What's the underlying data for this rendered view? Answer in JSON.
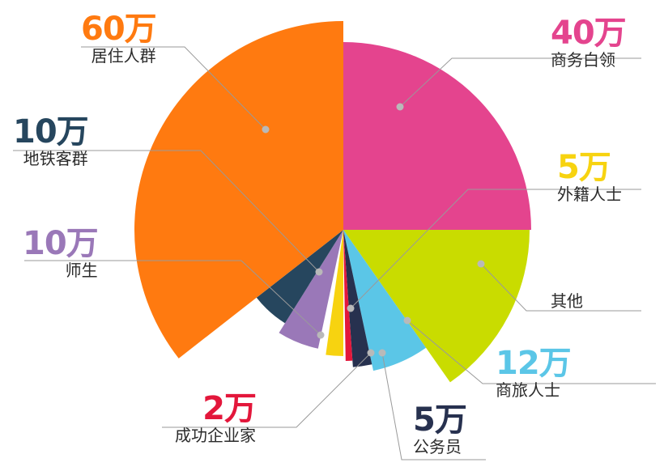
{
  "chart_data": {
    "type": "pie",
    "title": "",
    "slices": [
      {
        "label": "商务白领",
        "value_text": "40万",
        "value": 40,
        "color": "#e4448e"
      },
      {
        "label": "外籍人士",
        "value_text": "5万",
        "value": 5,
        "color": "#f7d310"
      },
      {
        "label": "其他",
        "value_text": "",
        "value": null,
        "color": "#c9dc00"
      },
      {
        "label": "商旅人士",
        "value_text": "12万",
        "value": 12,
        "color": "#5bc6e7"
      },
      {
        "label": "公务员",
        "value_text": "5万",
        "value": 5,
        "color": "#27314f"
      },
      {
        "label": "成功企业家",
        "value_text": "2万",
        "value": 2,
        "color": "#e3173b"
      },
      {
        "label": "师生",
        "value_text": "10万",
        "value": 10,
        "color": "#9a78b8"
      },
      {
        "label": "地铁客群",
        "value_text": "10万",
        "value": 10,
        "color": "#26465e"
      },
      {
        "label": "居住人群",
        "value_text": "60万",
        "value": 60,
        "color": "#ff7a10"
      }
    ],
    "value_colors": {
      "居住人群": "#ff7a10",
      "商务白领": "#e4448e",
      "地铁客群": "#26465e",
      "外籍人士": "#f7d310",
      "师生": "#9a78b8",
      "商旅人士": "#5bc6e7",
      "成功企业家": "#e3173b",
      "公务员": "#27314f"
    }
  }
}
